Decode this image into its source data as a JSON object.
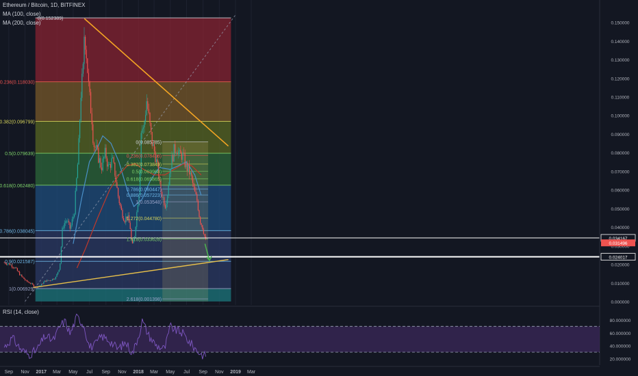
{
  "header": {
    "title": "Ethereum / Bitcoin, 1D, BITFINEX",
    "ma100": "MA (100, close)",
    "ma200": "MA (200, close)",
    "rsi": "RSI (14, close)"
  },
  "colors": {
    "background": "#131722",
    "trendline_top": "#f5a623",
    "trendline_bottom": "#e8c04a",
    "ma100": "#4a90c8",
    "ma200": "#c0392b",
    "candle_up": "#26a69a",
    "candle_down": "#ef5350",
    "rsi_line": "#7e57c2",
    "rsi_band": "#3d2a5c",
    "arrow": "#4caf50"
  },
  "chart_data": [
    {
      "type": "candlestick",
      "title": "Ethereum / Bitcoin, 1D, BITFINEX",
      "series": [
        {
          "name": "MA (100, close)"
        },
        {
          "name": "MA (200, close)"
        }
      ],
      "x_ticks": [
        "Sep",
        "Nov",
        "2017",
        "Mar",
        "May",
        "Jul",
        "Sep",
        "Nov",
        "2018",
        "Mar",
        "May",
        "Jul",
        "Sep",
        "Nov",
        "2019",
        "Mar"
      ],
      "y_ticks": [
        "0.150000",
        "0.140000",
        "0.130000",
        "0.120000",
        "0.110000",
        "0.100000",
        "0.090000",
        "0.080000",
        "0.070000",
        "0.060000",
        "0.050000",
        "0.040000",
        "0.030000",
        "0.020000",
        "0.010000",
        "0.000000"
      ],
      "ylim": [
        0,
        0.155
      ],
      "price_labels": [
        {
          "text": "0.034167",
          "value": 0.034167,
          "color": "#ffffff"
        },
        {
          "text": "0.031496",
          "value": 0.031496,
          "color": "#ef5350"
        },
        {
          "text": "0.024017",
          "value": 0.024017,
          "color": "#ffffff"
        }
      ],
      "close_path": [
        {
          "x": "2016-08-15",
          "y": 0.021
        },
        {
          "x": "2016-09-05",
          "y": 0.02
        },
        {
          "x": "2016-09-25",
          "y": 0.018
        },
        {
          "x": "2016-10-15",
          "y": 0.014
        },
        {
          "x": "2016-11-05",
          "y": 0.011
        },
        {
          "x": "2016-11-25",
          "y": 0.0095
        },
        {
          "x": "2016-12-12",
          "y": 0.0075
        },
        {
          "x": "2016-12-28",
          "y": 0.0085
        },
        {
          "x": "2017-01-15",
          "y": 0.011
        },
        {
          "x": "2017-02-05",
          "y": 0.0115
        },
        {
          "x": "2017-02-25",
          "y": 0.013
        },
        {
          "x": "2017-03-12",
          "y": 0.019
        },
        {
          "x": "2017-03-22",
          "y": 0.04
        },
        {
          "x": "2017-04-05",
          "y": 0.044
        },
        {
          "x": "2017-04-20",
          "y": 0.039
        },
        {
          "x": "2017-05-05",
          "y": 0.048
        },
        {
          "x": "2017-05-20",
          "y": 0.078
        },
        {
          "x": "2017-05-30",
          "y": 0.112
        },
        {
          "x": "2017-06-08",
          "y": 0.125
        },
        {
          "x": "2017-06-12",
          "y": 0.1465
        },
        {
          "x": "2017-06-20",
          "y": 0.133
        },
        {
          "x": "2017-06-30",
          "y": 0.111
        },
        {
          "x": "2017-07-10",
          "y": 0.099
        },
        {
          "x": "2017-07-16",
          "y": 0.085
        },
        {
          "x": "2017-07-25",
          "y": 0.082
        },
        {
          "x": "2017-08-05",
          "y": 0.077
        },
        {
          "x": "2017-08-15",
          "y": 0.072
        },
        {
          "x": "2017-08-30",
          "y": 0.08
        },
        {
          "x": "2017-09-10",
          "y": 0.072
        },
        {
          "x": "2017-09-25",
          "y": 0.076
        },
        {
          "x": "2017-10-05",
          "y": 0.069
        },
        {
          "x": "2017-10-15",
          "y": 0.058
        },
        {
          "x": "2017-10-28",
          "y": 0.049
        },
        {
          "x": "2017-11-10",
          "y": 0.044
        },
        {
          "x": "2017-11-20",
          "y": 0.046
        },
        {
          "x": "2017-12-01",
          "y": 0.04
        },
        {
          "x": "2017-12-08",
          "y": 0.029
        },
        {
          "x": "2017-12-18",
          "y": 0.036
        },
        {
          "x": "2017-12-26",
          "y": 0.048
        },
        {
          "x": "2018-01-05",
          "y": 0.062
        },
        {
          "x": "2018-01-12",
          "y": 0.094
        },
        {
          "x": "2018-01-20",
          "y": 0.092
        },
        {
          "x": "2018-02-01",
          "y": 0.108
        },
        {
          "x": "2018-02-10",
          "y": 0.098
        },
        {
          "x": "2018-02-20",
          "y": 0.086
        },
        {
          "x": "2018-03-05",
          "y": 0.079
        },
        {
          "x": "2018-03-15",
          "y": 0.071
        },
        {
          "x": "2018-03-25",
          "y": 0.06
        },
        {
          "x": "2018-04-05",
          "y": 0.055
        },
        {
          "x": "2018-04-12",
          "y": 0.052
        },
        {
          "x": "2018-04-20",
          "y": 0.058
        },
        {
          "x": "2018-05-01",
          "y": 0.073
        },
        {
          "x": "2018-05-15",
          "y": 0.081
        },
        {
          "x": "2018-05-25",
          "y": 0.083
        },
        {
          "x": "2018-06-05",
          "y": 0.078
        },
        {
          "x": "2018-06-15",
          "y": 0.079
        },
        {
          "x": "2018-06-28",
          "y": 0.073
        },
        {
          "x": "2018-07-10",
          "y": 0.07
        },
        {
          "x": "2018-07-20",
          "y": 0.066
        },
        {
          "x": "2018-07-30",
          "y": 0.059
        },
        {
          "x": "2018-08-10",
          "y": 0.054
        },
        {
          "x": "2018-08-20",
          "y": 0.044
        },
        {
          "x": "2018-09-01",
          "y": 0.039
        },
        {
          "x": "2018-09-10",
          "y": 0.033
        },
        {
          "x": "2018-09-15",
          "y": 0.031
        }
      ],
      "ma100_path": [
        {
          "x": "2017-05-01",
          "y": 0.031
        },
        {
          "x": "2017-06-01",
          "y": 0.055
        },
        {
          "x": "2017-07-01",
          "y": 0.075
        },
        {
          "x": "2017-08-01",
          "y": 0.083
        },
        {
          "x": "2017-08-20",
          "y": 0.089
        },
        {
          "x": "2017-09-20",
          "y": 0.085
        },
        {
          "x": "2017-10-20",
          "y": 0.075
        },
        {
          "x": "2017-11-20",
          "y": 0.06
        },
        {
          "x": "2017-12-15",
          "y": 0.051
        },
        {
          "x": "2018-01-15",
          "y": 0.055
        },
        {
          "x": "2018-02-15",
          "y": 0.065
        },
        {
          "x": "2018-03-20",
          "y": 0.072
        },
        {
          "x": "2018-05-01",
          "y": 0.071
        },
        {
          "x": "2018-06-01",
          "y": 0.073
        },
        {
          "x": "2018-07-01",
          "y": 0.075
        },
        {
          "x": "2018-08-01",
          "y": 0.068
        },
        {
          "x": "2018-08-25",
          "y": 0.057
        }
      ],
      "ma200_path": [
        {
          "x": "2017-05-15",
          "y": 0.018
        },
        {
          "x": "2017-06-15",
          "y": 0.028
        },
        {
          "x": "2017-08-01",
          "y": 0.045
        },
        {
          "x": "2017-09-15",
          "y": 0.06
        },
        {
          "x": "2017-10-20",
          "y": 0.068
        },
        {
          "x": "2017-11-20",
          "y": 0.073
        },
        {
          "x": "2017-12-20",
          "y": 0.074
        },
        {
          "x": "2018-01-20",
          "y": 0.071
        },
        {
          "x": "2018-03-01",
          "y": 0.068
        },
        {
          "x": "2018-04-10",
          "y": 0.068
        },
        {
          "x": "2018-05-15",
          "y": 0.071
        },
        {
          "x": "2018-06-20",
          "y": 0.074
        },
        {
          "x": "2018-07-20",
          "y": 0.073
        },
        {
          "x": "2018-08-25",
          "y": 0.068
        }
      ],
      "fib_retracement": {
        "x_start": "2016-12-10",
        "x_end": "2018-12-15",
        "bands": [
          {
            "top": 0.1524,
            "bottom": 0.1183,
            "color": "#8b2232"
          },
          {
            "top": 0.1183,
            "bottom": 0.0968,
            "color": "#7a5a2a"
          },
          {
            "top": 0.0968,
            "bottom": 0.0796,
            "color": "#5a6a22"
          },
          {
            "top": 0.0796,
            "bottom": 0.0625,
            "color": "#2c6a3a"
          },
          {
            "top": 0.0625,
            "bottom": 0.038,
            "color": "#1f4f80"
          },
          {
            "top": 0.038,
            "bottom": 0.0069,
            "color": "#2b3a66"
          },
          {
            "top": 0.0069,
            "bottom": 0.0,
            "color": "#1c7a80"
          }
        ],
        "levels": [
          {
            "text": "0(0.152389)",
            "value": 0.152389,
            "color": "#d1d4dc"
          },
          {
            "text": "0.236(0.118030)",
            "value": 0.11803,
            "color": "#ef5350"
          },
          {
            "text": "0.382(0.096799)",
            "value": 0.096799,
            "color": "#d6d35a"
          },
          {
            "text": "0.5(0.079639)",
            "value": 0.079639,
            "color": "#7ed36a"
          },
          {
            "text": "0.618(0.062480)",
            "value": 0.06248,
            "color": "#7ed36a"
          },
          {
            "text": "0.786(0.038045)",
            "value": 0.038045,
            "color": "#6fb8e8"
          },
          {
            "text": "0.9(0.021587)",
            "value": 0.021587,
            "color": "#6fb8e8"
          },
          {
            "text": "1(0.006929)",
            "value": 0.006929,
            "color": "#9aa3c7"
          }
        ]
      },
      "fib_extension": {
        "x_start": "2018-04-01",
        "x_end": "2018-09-20",
        "levels": [
          {
            "text": "0(0.085785)",
            "value": 0.085785,
            "color": "#d1d4dc"
          },
          {
            "text": "0.236(0.078408)",
            "value": 0.078408,
            "color": "#ef5350"
          },
          {
            "text": "0.382(0.073849)",
            "value": 0.073849,
            "color": "#d6d35a"
          },
          {
            "text": "0.5(0.069968)",
            "value": 0.069968,
            "color": "#7ed36a"
          },
          {
            "text": "0.618(0.065865)",
            "value": 0.065865,
            "color": "#7ed36a"
          },
          {
            "text": "0.786(0.060447)",
            "value": 0.060447,
            "color": "#6fb8e8"
          },
          {
            "text": "0.886(0.057223)",
            "value": 0.057223,
            "color": "#6fb8e8"
          },
          {
            "text": "1(0.053548)",
            "value": 0.053548,
            "color": "#9aa3c7"
          },
          {
            "text": "1.272(0.044780)",
            "value": 0.04478,
            "color": "#d6d35a"
          },
          {
            "text": "1.618(0.033628)",
            "value": 0.033628,
            "color": "#7ed36a"
          },
          {
            "text": "2.618(0.001398)",
            "value": 0.001398,
            "color": "#9aa3c7"
          }
        ]
      },
      "trendline_top": [
        {
          "x": "2017-06-12",
          "y": 0.152
        },
        {
          "x": "2018-12-05",
          "y": 0.0835
        }
      ],
      "trendline_bottom": [
        {
          "x": "2016-12-01",
          "y": 0.0075
        },
        {
          "x": "2018-12-05",
          "y": 0.0225
        }
      ],
      "dotted_diagonal": [
        {
          "x": "2016-11-01",
          "y": 0.0
        },
        {
          "x": "2019-01-01",
          "y": 0.154
        }
      ],
      "arrow": [
        {
          "x": "2018-09-08",
          "y": 0.031
        },
        {
          "x": "2018-09-25",
          "y": 0.022
        }
      ]
    },
    {
      "type": "line",
      "title": "RSI (14, close)",
      "y_ticks": [
        "80.000000",
        "60.000000",
        "40.000000",
        "20.000000"
      ],
      "ylim": [
        10,
        100
      ],
      "bands": {
        "upper": 70,
        "lower": 30
      },
      "values": [
        {
          "x": "2016-08-15",
          "y": 38
        },
        {
          "x": "2016-09-15",
          "y": 52
        },
        {
          "x": "2016-10-15",
          "y": 35
        },
        {
          "x": "2016-11-15",
          "y": 26
        },
        {
          "x": "2016-12-15",
          "y": 33
        },
        {
          "x": "2017-01-15",
          "y": 55
        },
        {
          "x": "2017-02-15",
          "y": 48
        },
        {
          "x": "2017-03-15",
          "y": 72
        },
        {
          "x": "2017-04-01",
          "y": 78
        },
        {
          "x": "2017-04-20",
          "y": 58
        },
        {
          "x": "2017-05-15",
          "y": 85
        },
        {
          "x": "2017-06-10",
          "y": 72
        },
        {
          "x": "2017-07-01",
          "y": 38
        },
        {
          "x": "2017-07-20",
          "y": 40
        },
        {
          "x": "2017-08-15",
          "y": 55
        },
        {
          "x": "2017-09-15",
          "y": 48
        },
        {
          "x": "2017-10-15",
          "y": 35
        },
        {
          "x": "2017-11-15",
          "y": 45
        },
        {
          "x": "2017-12-10",
          "y": 28
        },
        {
          "x": "2018-01-05",
          "y": 60
        },
        {
          "x": "2018-01-15",
          "y": 79
        },
        {
          "x": "2018-02-10",
          "y": 55
        },
        {
          "x": "2018-03-10",
          "y": 40
        },
        {
          "x": "2018-04-10",
          "y": 35
        },
        {
          "x": "2018-05-01",
          "y": 70
        },
        {
          "x": "2018-05-20",
          "y": 64
        },
        {
          "x": "2018-06-15",
          "y": 60
        },
        {
          "x": "2018-07-15",
          "y": 44
        },
        {
          "x": "2018-08-15",
          "y": 30
        },
        {
          "x": "2018-09-05",
          "y": 24
        },
        {
          "x": "2018-09-15",
          "y": 28
        }
      ]
    }
  ]
}
